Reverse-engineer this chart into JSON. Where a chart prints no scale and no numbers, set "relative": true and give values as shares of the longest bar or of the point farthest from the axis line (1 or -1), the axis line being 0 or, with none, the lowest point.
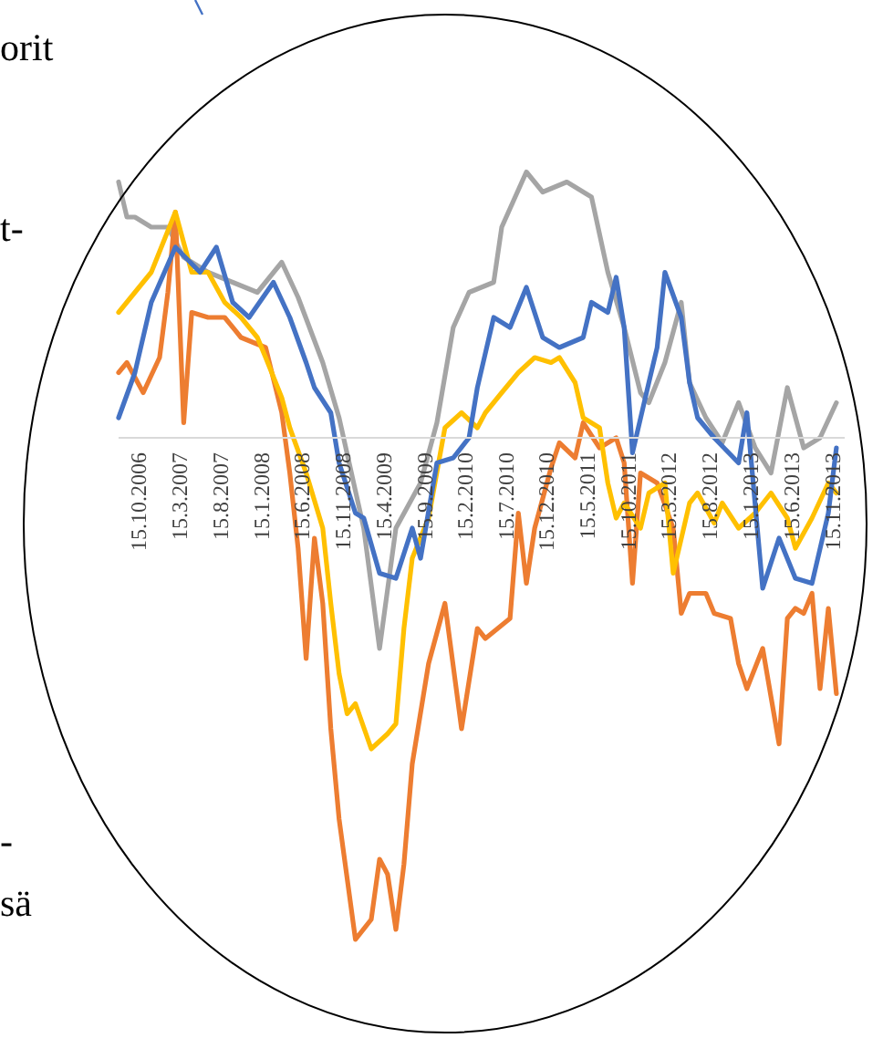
{
  "chart_data": {
    "type": "line",
    "relative": true,
    "annotations": [
      "orit",
      "t-",
      "-",
      "sä"
    ],
    "xlim": [
      "2006-08-01",
      "2014-01-01"
    ],
    "xticks": [
      {
        "value": "2006-10-15",
        "label": "15.10.2006"
      },
      {
        "value": "2007-03-15",
        "label": "15.3.2007"
      },
      {
        "value": "2007-08-15",
        "label": "15.8.2007"
      },
      {
        "value": "2008-01-15",
        "label": "15.1.2008"
      },
      {
        "value": "2008-06-15",
        "label": "15.6.2008"
      },
      {
        "value": "2008-11-15",
        "label": "15.11.2008"
      },
      {
        "value": "2009-04-15",
        "label": "15.4.2009"
      },
      {
        "value": "2009-09-15",
        "label": "15.9.2009"
      },
      {
        "value": "2010-02-15",
        "label": "15.2.2010"
      },
      {
        "value": "2010-07-15",
        "label": "15.7.2010"
      },
      {
        "value": "2010-12-15",
        "label": "15.12.2010"
      },
      {
        "value": "2011-05-15",
        "label": "15.5.2011"
      },
      {
        "value": "2011-10-15",
        "label": "15.10.2011"
      },
      {
        "value": "2012-03-15",
        "label": "15.3.2012"
      },
      {
        "value": "2012-08-15",
        "label": "15.8.2012"
      },
      {
        "value": "2013-01-15",
        "label": "15.1.2013"
      },
      {
        "value": "2013-06-15",
        "label": "15.6.2013"
      },
      {
        "value": "2013-11-15",
        "label": "15.11.2013"
      }
    ],
    "series": [
      {
        "color": "#a5a5a5",
        "x": [
          "2006-08",
          "2006-09",
          "2006-10",
          "2006-12",
          "2007-02",
          "2007-04",
          "2007-07",
          "2007-10",
          "2008-01",
          "2008-04",
          "2008-06",
          "2008-09",
          "2008-11",
          "2009-02",
          "2009-04",
          "2009-06",
          "2009-09",
          "2009-11",
          "2010-01",
          "2010-03",
          "2010-06",
          "2010-07",
          "2010-10",
          "2010-12",
          "2011-03",
          "2011-06",
          "2011-08",
          "2011-10",
          "2011-12",
          "2012-01",
          "2012-03",
          "2012-05",
          "2012-06",
          "2012-08",
          "2012-10",
          "2012-12",
          "2013-02",
          "2013-04",
          "2013-06",
          "2013-08",
          "2013-10",
          "2013-12"
        ],
        "values": [
          0.51,
          0.44,
          0.44,
          0.42,
          0.42,
          0.36,
          0.33,
          0.31,
          0.29,
          0.35,
          0.28,
          0.15,
          0.04,
          -0.18,
          -0.42,
          -0.18,
          -0.09,
          0.03,
          0.22,
          0.29,
          0.31,
          0.42,
          0.53,
          0.49,
          0.51,
          0.48,
          0.33,
          0.22,
          0.09,
          0.07,
          0.15,
          0.27,
          0.11,
          0.04,
          -0.01,
          0.07,
          -0.02,
          -0.07,
          0.1,
          -0.02,
          0,
          0.07
        ]
      },
      {
        "color": "#ed7d31",
        "x": [
          "2006-08",
          "2006-09",
          "2006-11",
          "2007-01",
          "2007-02",
          "2007-03",
          "2007-04",
          "2007-05",
          "2007-07",
          "2007-09",
          "2007-11",
          "2008-02",
          "2008-04",
          "2008-05",
          "2008-06",
          "2008-07",
          "2008-08",
          "2008-09",
          "2008-10",
          "2008-11",
          "2009-01",
          "2009-03",
          "2009-04",
          "2009-05",
          "2009-06",
          "2009-07",
          "2009-08",
          "2009-10",
          "2009-12",
          "2010-02",
          "2010-04",
          "2010-05",
          "2010-08",
          "2010-09",
          "2010-10",
          "2010-11",
          "2011-01",
          "2011-02",
          "2011-04",
          "2011-05",
          "2011-07",
          "2011-09",
          "2011-10",
          "2011-11",
          "2011-12",
          "2012-02",
          "2012-04",
          "2012-05",
          "2012-06",
          "2012-08",
          "2012-09",
          "2012-11",
          "2012-12",
          "2013-01",
          "2013-03",
          "2013-05",
          "2013-06",
          "2013-07",
          "2013-08",
          "2013-09",
          "2013-10",
          "2013-11",
          "2013-12"
        ],
        "values": [
          0.13,
          0.15,
          0.09,
          0.16,
          0.29,
          0.45,
          0.03,
          0.25,
          0.24,
          0.24,
          0.2,
          0.18,
          0.05,
          -0.07,
          -0.22,
          -0.44,
          -0.2,
          -0.33,
          -0.58,
          -0.76,
          -1,
          -0.96,
          -0.84,
          -0.87,
          -0.98,
          -0.85,
          -0.65,
          -0.45,
          -0.33,
          -0.58,
          -0.38,
          -0.4,
          -0.36,
          -0.15,
          -0.29,
          -0.18,
          -0.06,
          -0.01,
          -0.04,
          0.03,
          -0.02,
          0,
          -0.05,
          -0.29,
          -0.07,
          -0.09,
          -0.18,
          -0.35,
          -0.31,
          -0.31,
          -0.35,
          -0.36,
          -0.45,
          -0.5,
          -0.42,
          -0.61,
          -0.36,
          -0.34,
          -0.35,
          -0.31,
          -0.5,
          -0.34,
          -0.51
        ]
      },
      {
        "color": "#ffc000",
        "x": [
          "2006-08",
          "2006-10",
          "2006-12",
          "2007-03",
          "2007-05",
          "2007-07",
          "2007-09",
          "2007-11",
          "2008-01",
          "2008-02",
          "2008-04",
          "2008-05",
          "2008-07",
          "2008-09",
          "2008-10",
          "2008-11",
          "2008-12",
          "2009-01",
          "2009-03",
          "2009-05",
          "2009-06",
          "2009-07",
          "2009-08",
          "2009-10",
          "2009-12",
          "2010-02",
          "2010-04",
          "2010-05",
          "2010-07",
          "2010-09",
          "2010-11",
          "2011-01",
          "2011-02",
          "2011-04",
          "2011-05",
          "2011-07",
          "2011-08",
          "2011-09",
          "2011-10",
          "2011-12",
          "2012-01",
          "2012-03",
          "2012-04",
          "2012-06",
          "2012-07",
          "2012-09",
          "2012-10",
          "2012-12",
          "2013-02",
          "2013-04",
          "2013-06",
          "2013-07",
          "2013-09",
          "2013-11",
          "2013-12"
        ],
        "values": [
          0.25,
          0.29,
          0.33,
          0.45,
          0.33,
          0.33,
          0.27,
          0.24,
          0.2,
          0.16,
          0.08,
          0.02,
          -0.07,
          -0.18,
          -0.33,
          -0.47,
          -0.55,
          -0.53,
          -0.62,
          -0.59,
          -0.57,
          -0.38,
          -0.24,
          -0.16,
          0.02,
          0.05,
          0.02,
          0.05,
          0.09,
          0.13,
          0.16,
          0.15,
          0.16,
          0.11,
          0.04,
          0.02,
          -0.09,
          -0.16,
          -0.13,
          -0.18,
          -0.11,
          -0.09,
          -0.27,
          -0.13,
          -0.11,
          -0.17,
          -0.13,
          -0.18,
          -0.15,
          -0.11,
          -0.16,
          -0.22,
          -0.16,
          -0.09,
          -0.11
        ]
      },
      {
        "color": "#4472c4",
        "x": [
          "2006-08",
          "2006-10",
          "2006-12",
          "2007-03",
          "2007-06",
          "2007-08",
          "2007-10",
          "2007-12",
          "2008-03",
          "2008-05",
          "2008-07",
          "2008-08",
          "2008-10",
          "2008-11",
          "2009-01",
          "2009-02",
          "2009-04",
          "2009-06",
          "2009-08",
          "2009-09",
          "2009-11",
          "2010-01",
          "2010-03",
          "2010-04",
          "2010-06",
          "2010-08",
          "2010-10",
          "2010-12",
          "2011-02",
          "2011-05",
          "2011-06",
          "2011-08",
          "2011-09",
          "2011-10",
          "2011-11",
          "2012-01",
          "2012-02",
          "2012-03",
          "2012-05",
          "2012-06",
          "2012-07",
          "2012-09",
          "2012-12",
          "2013-01",
          "2013-03",
          "2013-05",
          "2013-07",
          "2013-09",
          "2013-11",
          "2013-12"
        ],
        "values": [
          0.04,
          0.13,
          0.27,
          0.38,
          0.33,
          0.38,
          0.27,
          0.24,
          0.31,
          0.24,
          0.15,
          0.1,
          0.05,
          -0.05,
          -0.15,
          -0.16,
          -0.27,
          -0.28,
          -0.18,
          -0.24,
          -0.05,
          -0.04,
          0,
          0.1,
          0.24,
          0.22,
          0.3,
          0.2,
          0.18,
          0.2,
          0.27,
          0.25,
          0.32,
          0.22,
          -0.03,
          0.11,
          0.18,
          0.33,
          0.24,
          0.11,
          0.04,
          0,
          -0.05,
          0.05,
          -0.3,
          -0.2,
          -0.28,
          -0.29,
          -0.15,
          -0.02
        ]
      }
    ]
  }
}
